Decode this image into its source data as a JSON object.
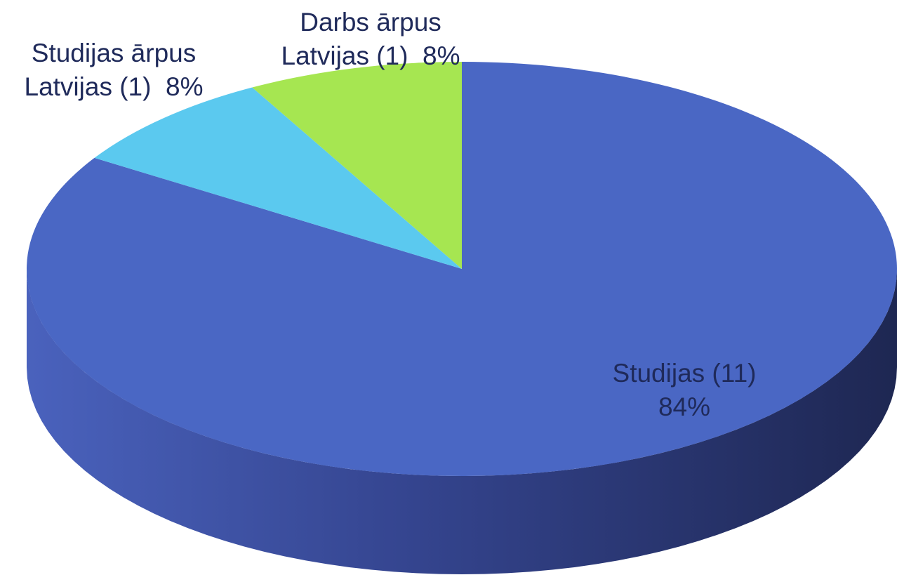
{
  "chart_data": {
    "type": "pie",
    "categories": [
      "Studijas (11)",
      "Studijas ārpus Latvijas (1)",
      "Darbs ārpus Latvijas (1)"
    ],
    "values": [
      84,
      8,
      8
    ],
    "value_labels": [
      "84%",
      "8%",
      "8%"
    ],
    "colors": [
      "#4a67c4",
      "#5bc9ef",
      "#a6e651"
    ],
    "three_d": true
  }
}
